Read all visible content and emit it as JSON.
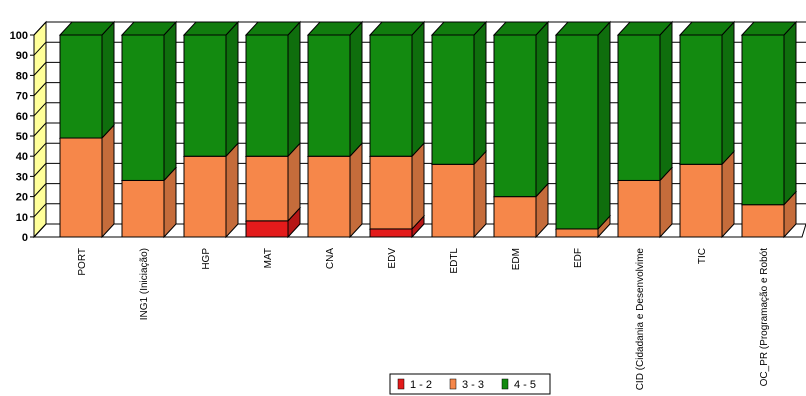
{
  "chart_data": {
    "type": "bar",
    "stacked": true,
    "style": "3d",
    "categories": [
      "PORT",
      "ING1 (Iniciação)",
      "HGP",
      "MAT",
      "CNA",
      "EDV",
      "EDTL",
      "EDM",
      "EDF",
      "CID (Cidadania e Desenvolvime",
      "TIC",
      "OC_PR (Programação e Robót"
    ],
    "series": [
      {
        "name": "1 - 2",
        "color": "#e31b1b",
        "values": [
          0,
          0,
          0,
          8,
          0,
          4,
          0,
          0,
          0,
          0,
          0,
          0
        ]
      },
      {
        "name": "3 - 3",
        "color": "#f6874a",
        "values": [
          49,
          28,
          40,
          32,
          40,
          36,
          36,
          20,
          4,
          28,
          36,
          16
        ]
      },
      {
        "name": "4 - 5",
        "color": "#138a10",
        "values": [
          51,
          72,
          60,
          60,
          60,
          60,
          64,
          80,
          96,
          72,
          64,
          84
        ]
      }
    ],
    "ylim": [
      0,
      100
    ],
    "yticks": [
      "0",
      "10",
      "20",
      "30",
      "40",
      "50",
      "60",
      "70",
      "80",
      "90",
      "100"
    ],
    "grid": true,
    "legend": "bottom-center"
  }
}
